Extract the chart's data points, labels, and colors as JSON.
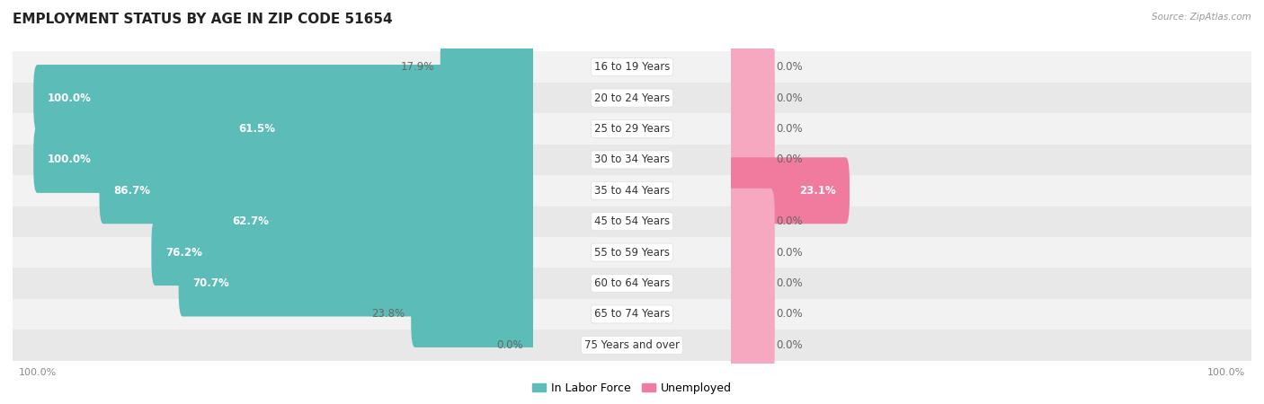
{
  "title": "EMPLOYMENT STATUS BY AGE IN ZIP CODE 51654",
  "source": "Source: ZipAtlas.com",
  "categories": [
    "16 to 19 Years",
    "20 to 24 Years",
    "25 to 29 Years",
    "30 to 34 Years",
    "35 to 44 Years",
    "45 to 54 Years",
    "55 to 59 Years",
    "60 to 64 Years",
    "65 to 74 Years",
    "75 Years and over"
  ],
  "in_labor_force": [
    17.9,
    100.0,
    61.5,
    100.0,
    86.7,
    62.7,
    76.2,
    70.7,
    23.8,
    0.0
  ],
  "unemployed": [
    0.0,
    0.0,
    0.0,
    0.0,
    23.1,
    0.0,
    0.0,
    0.0,
    0.0,
    0.0
  ],
  "unemployed_display": [
    8.0,
    8.0,
    8.0,
    8.0,
    23.1,
    8.0,
    8.0,
    8.0,
    8.0,
    8.0
  ],
  "labor_color": "#5bbcb8",
  "unemployed_color_light": "#f5a8bf",
  "unemployed_color_dark": "#f07b9e",
  "row_bg_even": "#f2f2f2",
  "row_bg_odd": "#e8e8e8",
  "title_fontsize": 11,
  "label_fontsize": 8.5,
  "tick_fontsize": 8,
  "legend_fontsize": 9,
  "background_color": "#ffffff"
}
